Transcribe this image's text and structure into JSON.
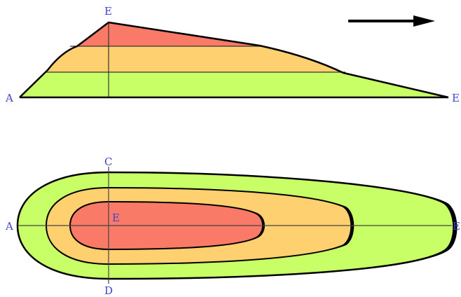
{
  "colors": {
    "outer_zone": "#c8ff66",
    "middle_zone": "#ffd070",
    "inner_zone": "#f97a66",
    "outline": "#000000",
    "label": "#4040d0"
  },
  "icons": {
    "flow_direction": "right-arrow-icon"
  },
  "profile_view": {
    "labels": {
      "left_end": "A",
      "summit": "E",
      "right_end": "E"
    }
  },
  "plan_view": {
    "labels": {
      "left_end": "A",
      "top": "C",
      "bottom": "D",
      "center": "E",
      "right_end": "E"
    }
  }
}
